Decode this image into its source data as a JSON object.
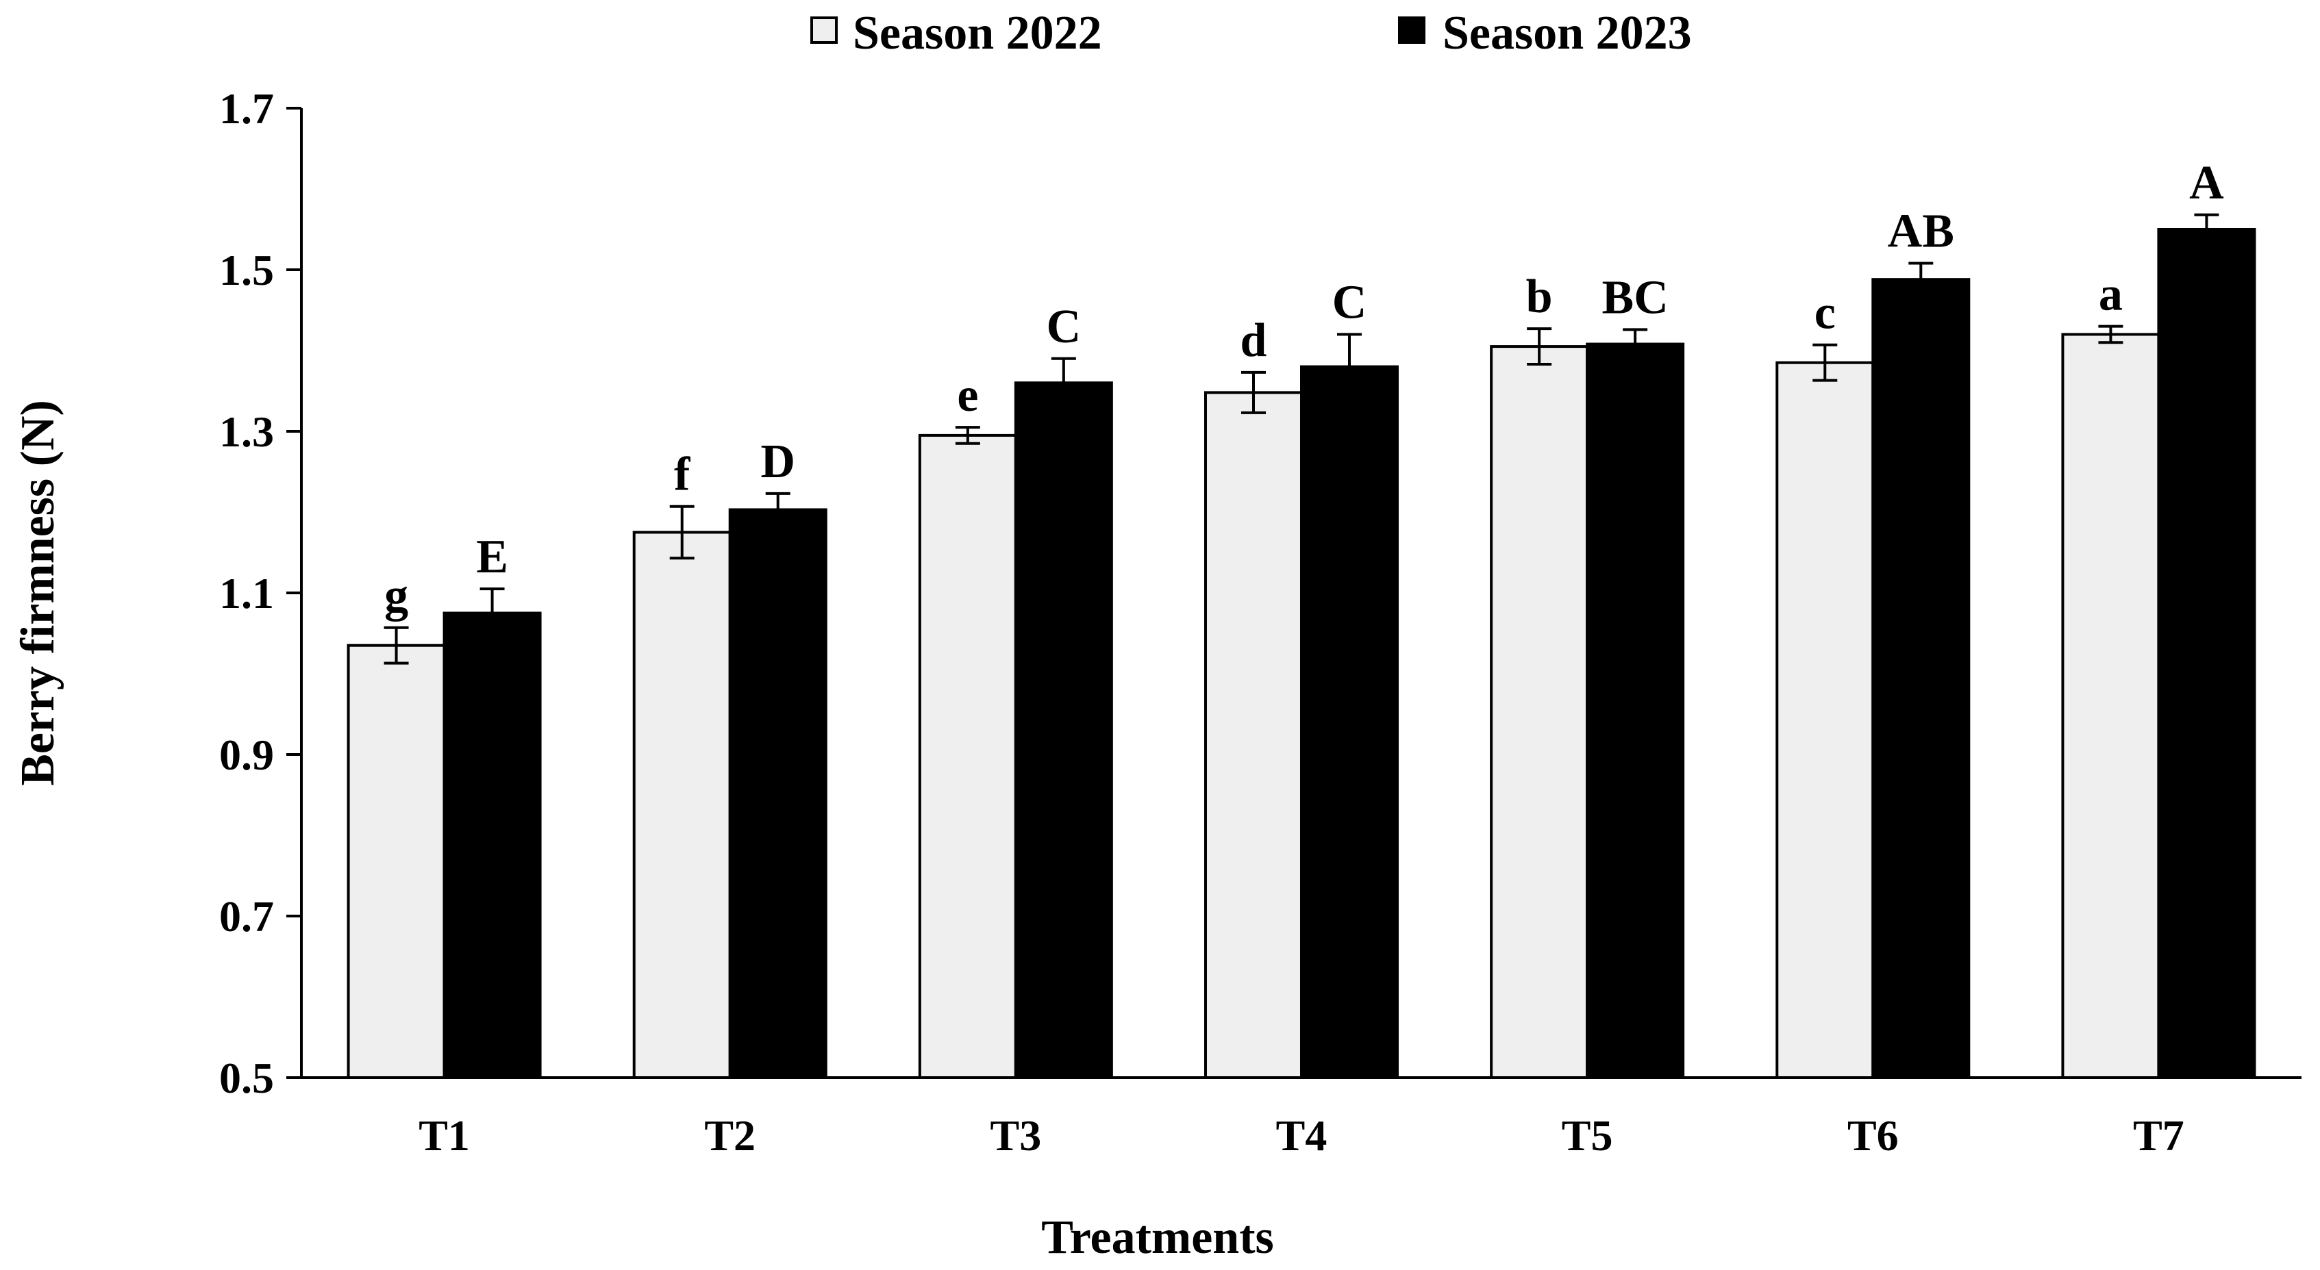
{
  "chart_data": {
    "type": "bar",
    "title": "",
    "xlabel": "Treatments",
    "ylabel": "Berry firmness (N)",
    "ylim": [
      0.5,
      1.7
    ],
    "yticks": [
      "0.5",
      "0.7",
      "0.9",
      "1.1",
      "1.3",
      "1.5",
      "1.7"
    ],
    "ytick_values": [
      0.5,
      0.7,
      0.9,
      1.1,
      1.3,
      1.5,
      1.7
    ],
    "categories": [
      "T1",
      "T2",
      "T3",
      "T4",
      "T5",
      "T6",
      "T7"
    ],
    "legend_position": "top-center",
    "grid": false,
    "series": [
      {
        "name": "Season 2022",
        "color": "#efefef",
        "values": [
          1.035,
          1.175,
          1.295,
          1.348,
          1.405,
          1.385,
          1.42
        ],
        "errors": [
          0.022,
          0.032,
          0.01,
          0.025,
          0.022,
          0.022,
          0.01
        ],
        "labels": [
          "g",
          "f",
          "e",
          "d",
          "b",
          "c",
          "a"
        ]
      },
      {
        "name": "Season 2023",
        "color": "#000000",
        "values": [
          1.075,
          1.203,
          1.36,
          1.38,
          1.408,
          1.488,
          1.55
        ],
        "errors": [
          0.03,
          0.02,
          0.03,
          0.04,
          0.018,
          0.02,
          0.018
        ],
        "labels": [
          "E",
          "D",
          "C",
          "C",
          "BC",
          "AB",
          "A"
        ]
      }
    ]
  }
}
